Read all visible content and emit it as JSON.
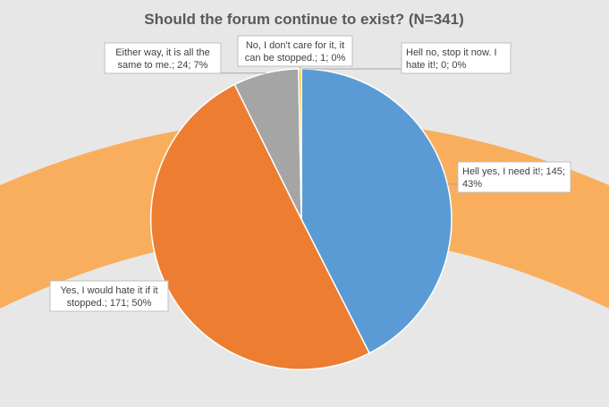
{
  "chart_data": {
    "type": "pie",
    "title": "Should the forum continue to exist? (N=341)",
    "slices": [
      {
        "label": "Hell yes, I need it!",
        "value": 145,
        "percent": "43%",
        "text": "Hell yes, I need it!; 145; 43%",
        "color": "#5b9bd5"
      },
      {
        "label": "Yes, I would hate it if it stopped.",
        "value": 171,
        "percent": "50%",
        "text": "Yes, I would hate it if it stopped.; 171; 50%",
        "color": "#ed7d31"
      },
      {
        "label": "Either way, it is all the same to me.",
        "value": 24,
        "percent": "7%",
        "text": "Either way, it is all the same to me.; 24; 7%",
        "color": "#a5a5a5"
      },
      {
        "label": "No, I don't care for it, it can be stopped.",
        "value": 1,
        "percent": "0%",
        "text": "No, I don't care for it, it can be stopped.; 1; 0%",
        "color": "#ffc000"
      },
      {
        "label": "Hell no, stop it now. I hate it!",
        "value": 0,
        "percent": "0%",
        "text": "Hell no, stop it now. I hate it!; 0; 0%",
        "color": "#4472c4"
      }
    ],
    "legend": "none",
    "decoration_color": "#f9ae5e",
    "background_color": "#e7e7e7"
  }
}
